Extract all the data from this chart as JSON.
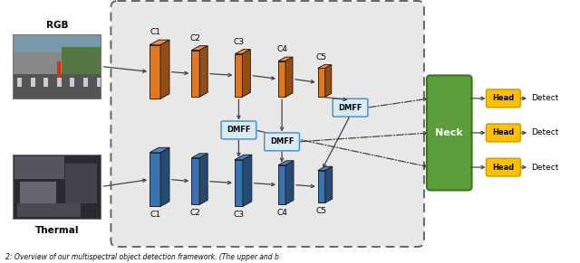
{
  "fig_bg": "#ffffff",
  "box_bg": "#e8e8e8",
  "orange_color": "#E07820",
  "blue_color": "#3B72B0",
  "green_color": "#5B9E3B",
  "green_edge": "#3a7520",
  "yellow_color": "#FFC000",
  "yellow_edge": "#cc9900",
  "dmff_face": "#d8ecf8",
  "dmff_edge": "#4488cc",
  "dashed_box_color": "#666666",
  "arrow_color": "#444444",
  "text_color": "#000000",
  "rgb_label": "RGB",
  "thermal_label": "Thermal",
  "neck_label": "Neck",
  "head_label": "Head",
  "detect_label": "Detect",
  "dmff_label": "DMFF",
  "c_labels": [
    "C1",
    "C2",
    "C3",
    "C4",
    "C5"
  ],
  "caption": "2: Overview of our multispectral object detection framework. (The upper and b"
}
